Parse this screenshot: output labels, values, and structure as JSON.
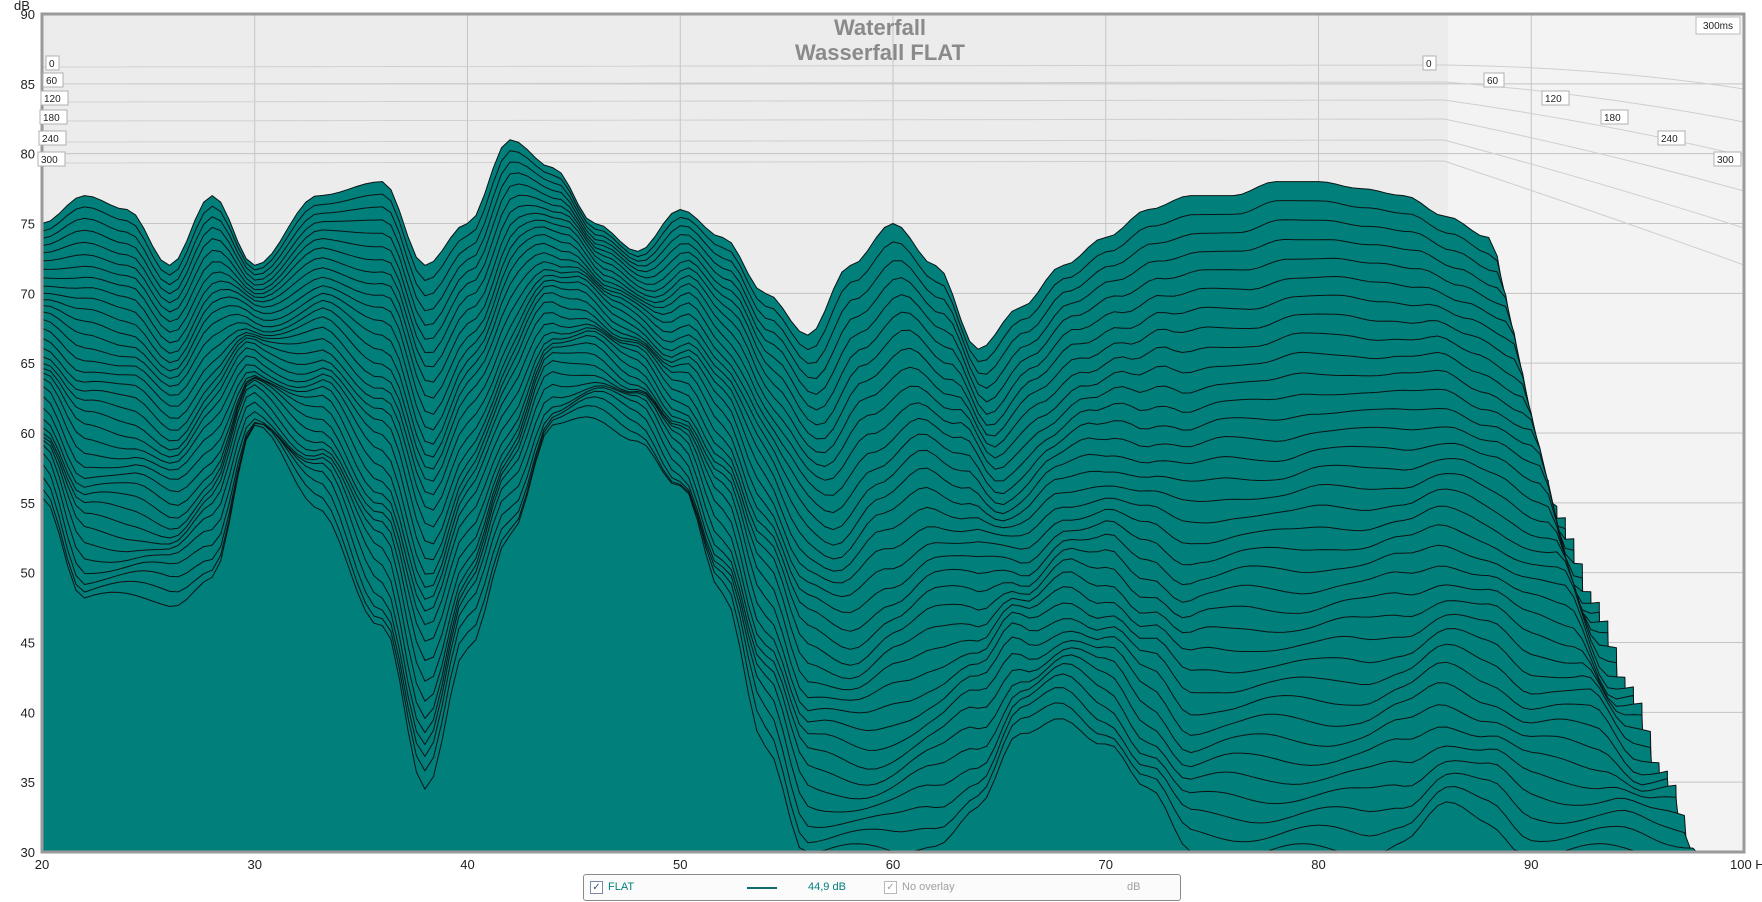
{
  "colors": {
    "fill": "#007f7b",
    "stroke": "#0b1414",
    "plot_bg": "#ececec",
    "grid": "#c4c4c4",
    "legend_text": "#007f7b",
    "muted": "#a0a0a0"
  },
  "legend": {
    "checkbox_mark": "✓",
    "series_label": "FLAT",
    "cursor_value": "44,9 dB",
    "overlay_label": "No overlay",
    "unit": "dB"
  },
  "chart_data": {
    "type": "area",
    "chart_kind": "waterfall",
    "title": "Waterfall",
    "subtitle": "Wasserfall FLAT",
    "x_label": "Hz",
    "y_label": "dB",
    "x_range": [
      20,
      100
    ],
    "y_range": [
      30,
      90
    ],
    "x_ticks": [
      "20",
      "30",
      "40",
      "50",
      "60",
      "70",
      "80",
      "90",
      "100 Hz"
    ],
    "y_ticks": [
      "30",
      "35",
      "40",
      "45",
      "50",
      "55",
      "60",
      "65",
      "70",
      "75",
      "80",
      "85",
      "90"
    ],
    "time_label": "300ms",
    "time_ticks": [
      "0",
      "60",
      "120",
      "180",
      "240",
      "300"
    ],
    "time_range_ms": [
      0,
      300
    ],
    "slice_count": 36,
    "grid": true,
    "series": [
      {
        "name": "FLAT",
        "time_ms": 0,
        "x": [
          20,
          22,
          24,
          26,
          28,
          30,
          33,
          36,
          38,
          40,
          42,
          44,
          46,
          48,
          50,
          52,
          54,
          56,
          58,
          60,
          62,
          64,
          66,
          68,
          70,
          72,
          74,
          76,
          78,
          80,
          82,
          84,
          86,
          88,
          90
        ],
        "y": [
          75,
          77,
          76,
          72,
          77,
          72,
          77,
          78,
          72,
          75,
          81,
          79,
          75,
          73,
          76,
          74,
          70,
          67,
          72,
          75,
          72,
          66,
          69,
          72,
          74,
          76,
          77,
          77,
          78,
          78,
          77.5,
          77,
          75.5,
          74,
          60
        ]
      },
      {
        "name": "FLAT",
        "time_ms": 300,
        "x": [
          20,
          22,
          24,
          26,
          28,
          30,
          33,
          36,
          38,
          40,
          42,
          44,
          46,
          48,
          50,
          52,
          54,
          56,
          58,
          60,
          62,
          64,
          66,
          68,
          70,
          72,
          74,
          76,
          78,
          80,
          82,
          84,
          86,
          88,
          90
        ],
        "y": [
          56,
          48,
          48,
          48,
          50,
          60,
          55,
          46,
          34,
          45,
          53,
          60,
          61,
          60,
          56,
          48,
          38,
          30,
          30,
          30,
          31,
          33,
          38,
          40,
          38,
          34,
          30,
          30,
          30,
          30,
          30,
          31,
          33,
          32,
          30
        ]
      }
    ]
  }
}
